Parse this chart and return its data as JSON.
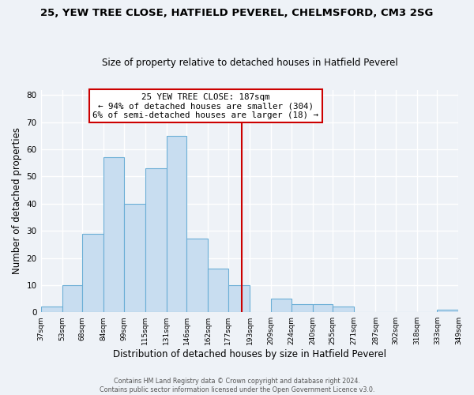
{
  "title1": "25, YEW TREE CLOSE, HATFIELD PEVEREL, CHELMSFORD, CM3 2SG",
  "title2": "Size of property relative to detached houses in Hatfield Peverel",
  "xlabel": "Distribution of detached houses by size in Hatfield Peverel",
  "ylabel": "Number of detached properties",
  "bins": [
    37,
    53,
    68,
    84,
    99,
    115,
    131,
    146,
    162,
    177,
    193,
    209,
    224,
    240,
    255,
    271,
    287,
    302,
    318,
    333,
    349
  ],
  "counts": [
    2,
    10,
    29,
    57,
    40,
    53,
    65,
    27,
    16,
    10,
    0,
    5,
    3,
    3,
    2,
    0,
    0,
    0,
    0,
    1
  ],
  "bar_color": "#c8ddf0",
  "bar_edge_color": "#6baed6",
  "vline_x": 187,
  "vline_color": "#cc0000",
  "annotation_title": "25 YEW TREE CLOSE: 187sqm",
  "annotation_line1": "← 94% of detached houses are smaller (304)",
  "annotation_line2": "6% of semi-detached houses are larger (18) →",
  "annotation_box_facecolor": "#ffffff",
  "annotation_box_edgecolor": "#cc0000",
  "ylim": [
    0,
    82
  ],
  "yticks": [
    0,
    10,
    20,
    30,
    40,
    50,
    60,
    70,
    80
  ],
  "footer1": "Contains HM Land Registry data © Crown copyright and database right 2024.",
  "footer2": "Contains public sector information licensed under the Open Government Licence v3.0.",
  "bg_color": "#eef2f7",
  "grid_color": "#ffffff",
  "title1_fontsize": 9.5,
  "title2_fontsize": 8.5,
  "ylabel_fontsize": 8.5,
  "xlabel_fontsize": 8.5,
  "tick_fontsize": 6.5,
  "annotation_fontsize": 7.8,
  "footer_fontsize": 5.8
}
